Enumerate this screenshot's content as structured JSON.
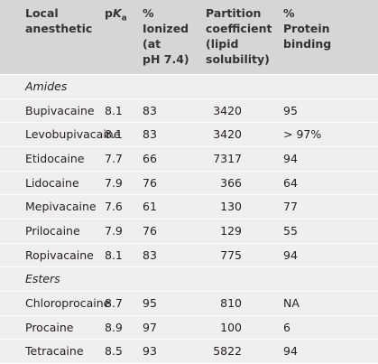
{
  "table": {
    "header": [
      [
        "Local",
        "anesthetic"
      ],
      {
        "prefix": "p",
        "italic": "K",
        "subscript": "a"
      },
      [
        "%",
        "Ionized",
        "(at",
        "pH 7.4)"
      ],
      [
        "Partition",
        "coefficient",
        "(lipid",
        "solubility)"
      ],
      [
        "%",
        "Protein",
        "binding"
      ]
    ],
    "groups": [
      {
        "label": "Amides",
        "rows": [
          [
            "Bupivacaine",
            "8.1",
            "83",
            "3420",
            "95"
          ],
          [
            "Levobupivacaine",
            "8.1",
            "83",
            "3420",
            "> 97%"
          ],
          [
            "Etidocaine",
            "7.7",
            "66",
            "7317",
            "94"
          ],
          [
            "Lidocaine",
            "7.9",
            "76",
            "366",
            "64"
          ],
          [
            "Mepivacaine",
            "7.6",
            "61",
            "130",
            "77"
          ],
          [
            "Prilocaine",
            "7.9",
            "76",
            "129",
            "55"
          ],
          [
            "Ropivacaine",
            "8.1",
            "83",
            "775",
            "94"
          ]
        ]
      },
      {
        "label": "Esters",
        "rows": [
          [
            "Chloroprocaine",
            "8.7",
            "95",
            "810",
            "NA"
          ],
          [
            "Procaine",
            "8.9",
            "97",
            "100",
            "6"
          ],
          [
            "Tetracaine",
            "8.5",
            "93",
            "5822",
            "94"
          ]
        ]
      }
    ]
  }
}
